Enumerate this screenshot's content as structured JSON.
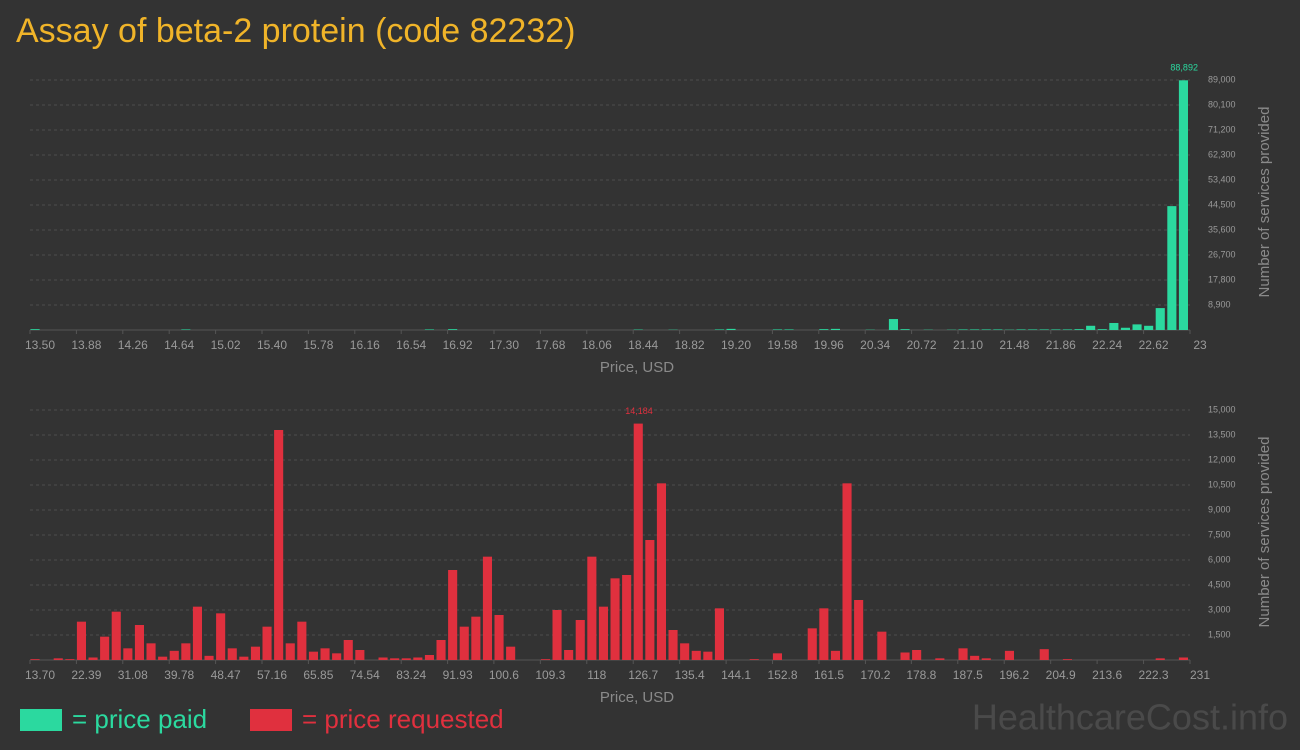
{
  "title": "Assay of beta-2 protein (code 82232)",
  "legend": [
    {
      "label": "= price paid",
      "color": "#2bd99f"
    },
    {
      "label": "= price requested",
      "color": "#e0303e"
    }
  ],
  "watermark": "HealthcareCost.info",
  "chart_data": [
    {
      "type": "histogram",
      "color": "#2bd99f",
      "xlabel": "Price, USD",
      "ylabel": "Number of services provided",
      "grid": true,
      "bins": [
        13.5,
        13.595,
        13.69,
        13.785,
        13.88,
        13.975,
        14.07,
        14.165,
        14.26,
        14.355,
        14.45,
        14.545,
        14.64,
        14.735,
        14.83,
        14.925,
        15.02,
        15.115,
        15.21,
        15.305,
        15.4,
        15.495,
        15.59,
        15.685,
        15.78,
        15.875,
        15.97,
        16.065,
        16.16,
        16.255,
        16.35,
        16.445,
        16.54,
        16.635,
        16.73,
        16.825,
        16.92,
        17.015,
        17.11,
        17.205,
        17.3,
        17.395,
        17.49,
        17.585,
        17.68,
        17.775,
        17.87,
        17.965,
        18.06,
        18.155,
        18.25,
        18.345,
        18.44,
        18.535,
        18.63,
        18.725,
        18.82,
        18.915,
        19.01,
        19.105,
        19.2,
        19.295,
        19.39,
        19.485,
        19.58,
        19.675,
        19.77,
        19.865,
        19.96,
        20.055,
        20.15,
        20.245,
        20.34,
        20.435,
        20.53,
        20.625,
        20.72,
        20.815,
        20.91,
        21.005,
        21.1,
        21.195,
        21.29,
        21.385,
        21.48,
        21.575,
        21.67,
        21.765,
        21.86,
        21.955,
        22.05,
        22.145,
        22.24,
        22.335,
        22.43,
        22.525,
        22.62,
        22.715,
        22.81,
        22.905,
        23
      ],
      "values": [
        300,
        0,
        0,
        0,
        0,
        0,
        0,
        0,
        0,
        0,
        0,
        0,
        0,
        200,
        0,
        0,
        0,
        0,
        0,
        0,
        0,
        0,
        0,
        0,
        0,
        0,
        0,
        0,
        0,
        0,
        0,
        0,
        0,
        0,
        200,
        0,
        300,
        0,
        0,
        0,
        0,
        0,
        0,
        0,
        0,
        0,
        0,
        0,
        0,
        0,
        0,
        0,
        150,
        0,
        0,
        100,
        0,
        0,
        0,
        200,
        400,
        0,
        0,
        0,
        200,
        200,
        0,
        0,
        300,
        400,
        0,
        0,
        100,
        0,
        3900,
        300,
        0,
        100,
        0,
        100,
        200,
        200,
        200,
        200,
        100,
        200,
        200,
        200,
        200,
        200,
        300,
        1500,
        300,
        2500,
        800,
        2000,
        1500,
        7800,
        44100,
        88892
      ],
      "value_labels": [
        null,
        null,
        null,
        null,
        null,
        null,
        null,
        null,
        null,
        null,
        null,
        null,
        null,
        null,
        null,
        null,
        null,
        null,
        null,
        null,
        null,
        null,
        null,
        null,
        null,
        null,
        null,
        null,
        null,
        null,
        null,
        null,
        null,
        null,
        null,
        null,
        null,
        null,
        null,
        null,
        null,
        null,
        null,
        null,
        null,
        null,
        null,
        null,
        null,
        null,
        null,
        null,
        null,
        null,
        null,
        null,
        null,
        null,
        null,
        null,
        null,
        null,
        null,
        null,
        null,
        null,
        null,
        null,
        null,
        null,
        null,
        null,
        null,
        null,
        null,
        null,
        null,
        null,
        null,
        null,
        null,
        null,
        null,
        null,
        null,
        null,
        null,
        null,
        null,
        null,
        null,
        null,
        null,
        null,
        null,
        null,
        null,
        null,
        null,
        "88,892"
      ],
      "xlim": [
        13.5,
        23
      ],
      "xticks": [
        {
          "value": 13.5,
          "label": "13.50"
        },
        13.88,
        14.26,
        14.64,
        15.02,
        {
          "value": 15.4,
          "label": "15.40"
        },
        15.78,
        16.16,
        16.54,
        16.92,
        {
          "value": 17.3,
          "label": "17.30"
        },
        17.68,
        18.06,
        18.44,
        18.82,
        {
          "value": 19.2,
          "label": "19.20"
        },
        19.58,
        19.96,
        20.34,
        20.72,
        {
          "value": 21.1,
          "label": "21.10"
        },
        21.48,
        21.86,
        22.24,
        22.62,
        23
      ],
      "ylim": [
        0,
        89000
      ],
      "yticks": [
        {
          "value": 8900,
          "label": "8,900"
        },
        {
          "value": 17800,
          "label": "17,800"
        },
        {
          "value": 26700,
          "label": "26,700"
        },
        {
          "value": 35600,
          "label": "35,600"
        },
        {
          "value": 44500,
          "label": "44,500"
        },
        {
          "value": 53400,
          "label": "53,400"
        },
        {
          "value": 62300,
          "label": "62,300"
        },
        {
          "value": 71200,
          "label": "71,200"
        },
        {
          "value": 80100,
          "label": "80,100"
        },
        {
          "value": 89000,
          "label": "89,000"
        }
      ]
    },
    {
      "type": "histogram",
      "color": "#e0303e",
      "xlabel": "Price, USD",
      "ylabel": "Number of services provided",
      "grid": true,
      "bins": [
        13.7,
        15.873,
        18.046,
        20.219,
        22.392,
        24.565,
        26.738,
        28.911,
        31.084,
        33.257,
        35.43,
        37.603,
        39.776,
        41.949,
        44.122,
        46.295,
        48.468,
        50.641,
        52.814,
        54.987,
        57.16,
        59.333,
        61.506,
        63.679,
        65.852,
        68.025,
        70.198,
        72.371,
        74.544,
        76.717,
        78.89,
        81.063,
        83.236,
        85.409,
        87.582,
        89.755,
        91.928,
        94.101,
        96.274,
        98.447,
        100.62,
        102.793,
        104.966,
        107.139,
        109.312,
        111.485,
        113.658,
        115.831,
        118.004,
        120.177,
        122.35,
        124.523,
        126.696,
        128.869,
        131.042,
        133.215,
        135.388,
        137.561,
        139.734,
        141.907,
        144.08,
        146.253,
        148.426,
        150.599,
        152.772,
        154.945,
        157.118,
        159.291,
        161.464,
        163.637,
        165.81,
        167.983,
        170.156,
        172.329,
        174.502,
        176.675,
        178.848,
        181.021,
        183.194,
        185.367,
        187.54,
        189.713,
        191.886,
        194.059,
        196.232,
        198.405,
        200.578,
        202.751,
        204.924,
        207.097,
        209.27,
        211.443,
        213.616,
        215.789,
        217.962,
        220.135,
        222.308,
        224.481,
        226.654,
        228.827,
        231
      ],
      "values": [
        50,
        0,
        100,
        50,
        2300,
        150,
        1400,
        2900,
        700,
        2100,
        1000,
        200,
        550,
        1000,
        3200,
        250,
        2800,
        700,
        200,
        800,
        2000,
        13800,
        1000,
        2300,
        500,
        700,
        400,
        1200,
        600,
        0,
        150,
        100,
        100,
        150,
        300,
        1200,
        5400,
        2000,
        2600,
        6200,
        2700,
        800,
        0,
        0,
        50,
        3000,
        600,
        2400,
        6200,
        3200,
        4900,
        5100,
        14184,
        7200,
        10600,
        1800,
        1000,
        550,
        500,
        3100,
        0,
        0,
        50,
        0,
        400,
        0,
        0,
        1900,
        3100,
        550,
        10600,
        3600,
        0,
        1700,
        0,
        450,
        600,
        0,
        100,
        0,
        700,
        250,
        100,
        0,
        550,
        0,
        0,
        650,
        0,
        50,
        0,
        0,
        0,
        0,
        0,
        0,
        0,
        100,
        0,
        150
      ],
      "value_labels": [
        null,
        null,
        null,
        null,
        null,
        null,
        null,
        null,
        null,
        null,
        null,
        null,
        null,
        null,
        null,
        null,
        null,
        null,
        null,
        null,
        null,
        null,
        null,
        null,
        null,
        null,
        null,
        null,
        null,
        null,
        null,
        null,
        null,
        null,
        null,
        null,
        null,
        null,
        null,
        null,
        null,
        null,
        null,
        null,
        null,
        null,
        null,
        null,
        null,
        null,
        null,
        null,
        "14,184",
        null,
        null,
        null,
        null,
        null,
        null,
        null,
        null,
        null,
        null,
        null,
        null,
        null,
        null,
        null,
        null,
        null,
        null,
        null,
        null,
        null,
        null,
        null,
        null,
        null,
        null,
        null,
        null,
        null,
        null,
        null,
        null,
        null,
        null,
        null,
        null,
        null,
        null,
        null,
        null,
        null,
        null,
        null,
        null,
        null,
        null,
        null
      ],
      "xlim": [
        13.7,
        231
      ],
      "xticks": [
        {
          "value": 13.7,
          "label": "13.70"
        },
        22.39,
        31.08,
        39.78,
        48.47,
        57.16,
        65.85,
        74.54,
        83.24,
        91.93,
        100.6,
        109.3,
        118,
        126.7,
        135.4,
        144.1,
        152.8,
        161.5,
        170.2,
        178.8,
        187.5,
        196.2,
        204.9,
        213.6,
        222.3,
        231
      ],
      "ylim": [
        0,
        15000
      ],
      "yticks": [
        {
          "value": 1500,
          "label": "1,500"
        },
        {
          "value": 3000,
          "label": "3,000"
        },
        {
          "value": 4500,
          "label": "4,500"
        },
        {
          "value": 6000,
          "label": "6,000"
        },
        {
          "value": 7500,
          "label": "7,500"
        },
        {
          "value": 9000,
          "label": "9,000"
        },
        {
          "value": 10500,
          "label": "10,500"
        },
        {
          "value": 12000,
          "label": "12,000"
        },
        {
          "value": 13500,
          "label": "13,500"
        },
        {
          "value": 15000,
          "label": "15,000"
        }
      ]
    }
  ]
}
